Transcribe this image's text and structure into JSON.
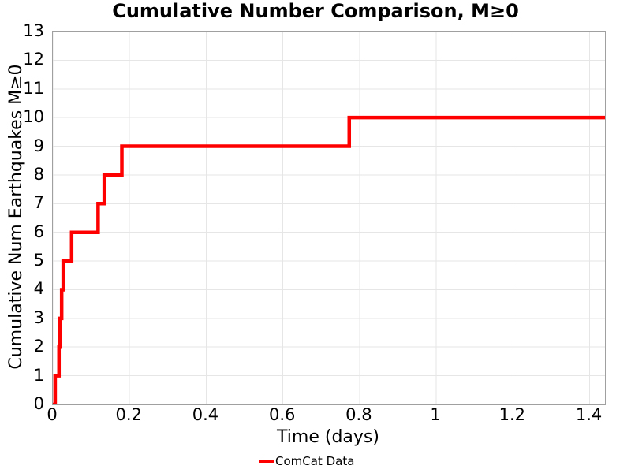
{
  "chart_data": {
    "type": "line",
    "subtype": "step-post",
    "title": "Cumulative Number Comparison, M≥0",
    "xlabel": "Time (days)",
    "ylabel": "Cumulative Num Earthquakes M≥0",
    "xlim": [
      0,
      1.44
    ],
    "ylim": [
      0,
      13
    ],
    "grid": true,
    "x_ticks": [
      0,
      0.2,
      0.4,
      0.6,
      0.8,
      1,
      1.2,
      1.4
    ],
    "x_tick_labels": [
      "0",
      "0.2",
      "0.4",
      "0.6",
      "0.8",
      "1",
      "1.2",
      "1.4"
    ],
    "y_ticks": [
      0,
      1,
      2,
      3,
      4,
      5,
      6,
      7,
      8,
      9,
      10,
      11,
      12,
      13
    ],
    "y_tick_labels": [
      "0",
      "1",
      "2",
      "3",
      "4",
      "5",
      "6",
      "7",
      "8",
      "9",
      "10",
      "11",
      "12",
      "13"
    ],
    "legend": {
      "position": "bottom-center",
      "entries": [
        {
          "label": "ComCat Data",
          "color": "#ff0000",
          "marker": "line"
        }
      ]
    },
    "series": [
      {
        "name": "ComCat Data",
        "color": "#ff0000",
        "line_width": 4.5,
        "step": "post",
        "points": [
          [
            0,
            0
          ],
          [
            0.006,
            1
          ],
          [
            0.016,
            2
          ],
          [
            0.019,
            3
          ],
          [
            0.023,
            4
          ],
          [
            0.027,
            5
          ],
          [
            0.049,
            6
          ],
          [
            0.118,
            7
          ],
          [
            0.134,
            8
          ],
          [
            0.18,
            9
          ],
          [
            0.773,
            10
          ],
          [
            1.44,
            10
          ]
        ]
      }
    ],
    "colors": {
      "line": "#ff0000",
      "grid": "#e6e6e6",
      "spine": "#a0a0a0",
      "text": "#000000",
      "background": "#ffffff"
    }
  }
}
